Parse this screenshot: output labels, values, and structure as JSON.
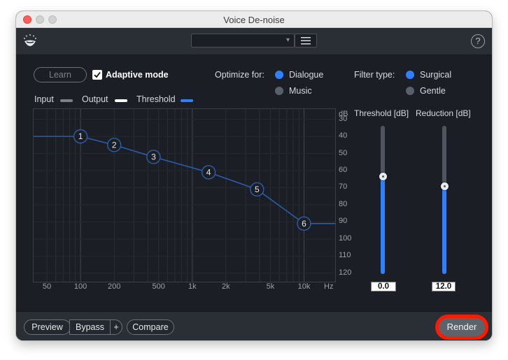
{
  "window": {
    "title": "Voice De-noise"
  },
  "header": {
    "preset_value": ""
  },
  "controls": {
    "learn_label": "Learn",
    "adaptive_label": "Adaptive mode",
    "adaptive_checked": true,
    "optimize_label": "Optimize for:",
    "optimize_options": [
      "Dialogue",
      "Music"
    ],
    "optimize_selected": "Dialogue",
    "filter_label": "Filter type:",
    "filter_options": [
      "Surgical",
      "Gentle"
    ],
    "filter_selected": "Surgical"
  },
  "legend": {
    "input": "Input",
    "output": "Output",
    "threshold": "Threshold",
    "colors": {
      "input": "#7b8089",
      "output": "#ffffff",
      "threshold": "#2f80ff"
    }
  },
  "graph": {
    "db_unit": "dB",
    "db_ticks": [
      "30",
      "40",
      "50",
      "60",
      "70",
      "80",
      "90",
      "100",
      "110",
      "120"
    ],
    "freq_unit": "Hz",
    "freq_ticks": [
      "50",
      "100",
      "200",
      "500",
      "1k",
      "2k",
      "5k",
      "10k"
    ],
    "nodes": [
      {
        "label": "1",
        "freq_hz": 100,
        "db": -40
      },
      {
        "label": "2",
        "freq_hz": 200,
        "db": -45
      },
      {
        "label": "3",
        "freq_hz": 450,
        "db": -52
      },
      {
        "label": "4",
        "freq_hz": 1400,
        "db": -61
      },
      {
        "label": "5",
        "freq_hz": 3800,
        "db": -71
      },
      {
        "label": "6",
        "freq_hz": 10000,
        "db": -91
      }
    ],
    "curve_color": "#2a5ea8"
  },
  "sliders": {
    "threshold": {
      "label": "Threshold [dB]",
      "value": "0.0",
      "level": 0.66
    },
    "reduction": {
      "label": "Reduction [dB]",
      "value": "12.0",
      "level": 0.59
    }
  },
  "footer": {
    "preview": "Preview",
    "bypass": "Bypass",
    "plus": "+",
    "compare": "Compare",
    "render": "Render"
  }
}
